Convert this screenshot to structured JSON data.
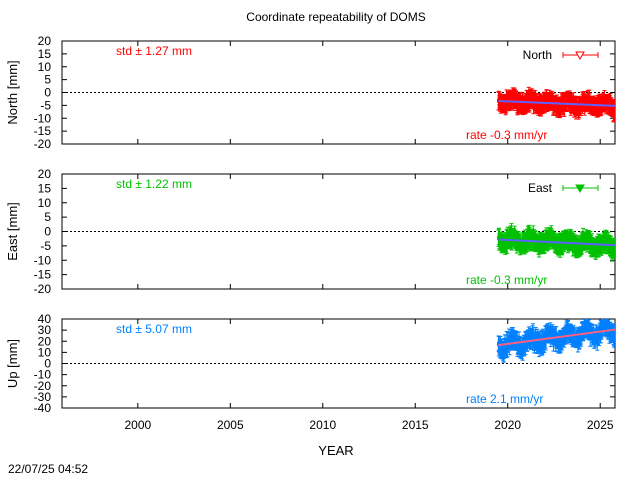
{
  "title": "Coordinate repeatability of DOMS",
  "timestamp": "22/07/25 04:52",
  "xlabel": "YEAR",
  "chart_data": {
    "type": "scatter",
    "title": "Coordinate repeatability of DOMS",
    "xlabel": "YEAR",
    "xlim": [
      1995.9,
      2025.8
    ],
    "xticks": [
      "2000",
      "2005",
      "2010",
      "2015",
      "2020",
      "2025"
    ],
    "panels": [
      {
        "name": "North",
        "ylabel": "North [mm]",
        "ylim": [
          -20,
          20
        ],
        "yticks": [
          "20",
          "15",
          "10",
          "5",
          "0",
          "-5",
          "-10",
          "-15",
          "-20"
        ],
        "yticks_values": [
          20,
          15,
          10,
          5,
          0,
          -5,
          -10,
          -15,
          -20
        ],
        "std_label": "std ± 1.27 mm",
        "rate_label": "rate -0.3 mm/yr",
        "legend": "North",
        "legend_marker": "triangle-down-open",
        "color": "#ff0000",
        "trend_color": "#6060ff",
        "data_start": 2019.5,
        "data_end": 2025.8,
        "trend": [
          [
            2019.5,
            -3.3
          ],
          [
            2025.8,
            -5.2
          ]
        ],
        "spread_mm": 2.5,
        "errorbar_mm": 2.8
      },
      {
        "name": "East",
        "ylabel": "East [mm]",
        "ylim": [
          -20,
          20
        ],
        "yticks": [
          "20",
          "15",
          "10",
          "5",
          "0",
          "-5",
          "-10",
          "-15",
          "-20"
        ],
        "yticks_values": [
          20,
          15,
          10,
          5,
          0,
          -5,
          -10,
          -15,
          -20
        ],
        "std_label": "std ± 1.22 mm",
        "rate_label": "rate -0.3 mm/yr",
        "legend": "East",
        "legend_marker": "triangle-down-filled",
        "color": "#00c000",
        "trend_color": "#6060ff",
        "data_start": 2019.5,
        "data_end": 2025.8,
        "trend": [
          [
            2019.5,
            -2.8
          ],
          [
            2025.8,
            -4.8
          ]
        ],
        "spread_mm": 2.4,
        "errorbar_mm": 2.6
      },
      {
        "name": "Up",
        "ylabel": "Up [mm]",
        "ylim": [
          -40,
          40
        ],
        "yticks": [
          "40",
          "30",
          "20",
          "10",
          "0",
          "-10",
          "-20",
          "-30",
          "-40"
        ],
        "yticks_values": [
          40,
          30,
          20,
          10,
          0,
          -10,
          -20,
          -30,
          -40
        ],
        "std_label": "std ± 5.07 mm",
        "rate_label": "rate  2.1 mm/yr",
        "legend": "",
        "color": "#0080ff",
        "trend_color": "#ff6080",
        "data_start": 2019.5,
        "data_end": 2025.8,
        "trend": [
          [
            2019.5,
            16.5
          ],
          [
            2025.8,
            30.5
          ]
        ],
        "spread_mm": 9,
        "errorbar_mm": 6
      }
    ]
  }
}
